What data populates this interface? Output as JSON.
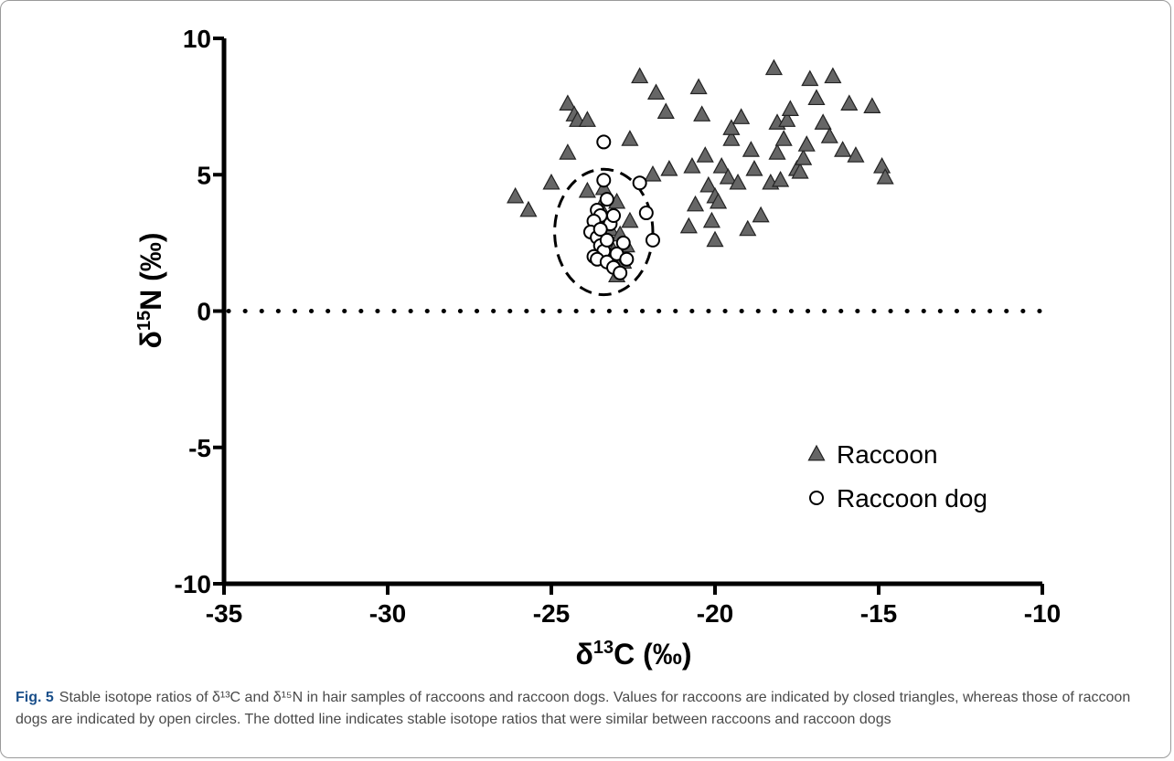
{
  "chart_data": {
    "type": "scatter",
    "xlabel": {
      "pre": "δ",
      "sup": "13",
      "post": "C (‰)"
    },
    "ylabel": {
      "pre": "δ",
      "sup": "15",
      "post": "N (‰)"
    },
    "xlim": [
      -35,
      -10
    ],
    "ylim": [
      -10,
      10
    ],
    "xticks": [
      -35,
      -30,
      -25,
      -20,
      -15,
      -10
    ],
    "yticks": [
      -10,
      -5,
      0,
      5,
      10
    ],
    "x_tick_labels": [
      "-35",
      "-30",
      "-25",
      "-20",
      "-15",
      "-10"
    ],
    "y_tick_labels": [
      "-10",
      "-5",
      "0",
      "5",
      "10"
    ],
    "grid": false,
    "legend_position": "lower-right",
    "reference_line": {
      "style": "dotted",
      "y": 0
    },
    "cluster_ellipse": {
      "style": "dashed",
      "center": [
        -23.4,
        2.9
      ],
      "radius_x": 1.5,
      "radius_y": 2.3
    },
    "series": [
      {
        "name": "Raccoon",
        "marker": "filled-triangle",
        "color": "#666666",
        "points": [
          [
            -26.1,
            4.2
          ],
          [
            -25.7,
            3.7
          ],
          [
            -25.0,
            4.7
          ],
          [
            -24.5,
            5.8
          ],
          [
            -24.5,
            7.6
          ],
          [
            -24.3,
            7.2
          ],
          [
            -24.2,
            7.0
          ],
          [
            -23.9,
            7.0
          ],
          [
            -23.9,
            4.4
          ],
          [
            -23.7,
            3.2
          ],
          [
            -23.5,
            3.8
          ],
          [
            -23.4,
            4.5
          ],
          [
            -23.3,
            2.6
          ],
          [
            -23.2,
            3.0
          ],
          [
            -23.1,
            2.2
          ],
          [
            -23.0,
            4.0
          ],
          [
            -22.9,
            2.8
          ],
          [
            -22.8,
            1.8
          ],
          [
            -22.7,
            2.4
          ],
          [
            -23.0,
            1.3
          ],
          [
            -23.2,
            2.0
          ],
          [
            -22.6,
            3.3
          ],
          [
            -22.6,
            6.3
          ],
          [
            -22.3,
            8.6
          ],
          [
            -21.9,
            5.0
          ],
          [
            -21.8,
            8.0
          ],
          [
            -21.5,
            7.3
          ],
          [
            -21.4,
            5.2
          ],
          [
            -20.8,
            3.1
          ],
          [
            -20.7,
            5.3
          ],
          [
            -20.6,
            3.9
          ],
          [
            -20.5,
            8.2
          ],
          [
            -20.4,
            7.2
          ],
          [
            -20.3,
            5.7
          ],
          [
            -20.2,
            4.6
          ],
          [
            -20.1,
            3.3
          ],
          [
            -20.0,
            2.6
          ],
          [
            -20.0,
            4.2
          ],
          [
            -19.9,
            4.0
          ],
          [
            -19.8,
            5.3
          ],
          [
            -19.6,
            4.9
          ],
          [
            -19.5,
            6.3
          ],
          [
            -19.5,
            6.7
          ],
          [
            -19.3,
            4.7
          ],
          [
            -19.2,
            7.1
          ],
          [
            -19.0,
            3.0
          ],
          [
            -18.9,
            5.9
          ],
          [
            -18.8,
            5.2
          ],
          [
            -18.6,
            3.5
          ],
          [
            -18.3,
            4.7
          ],
          [
            -18.2,
            8.9
          ],
          [
            -18.1,
            6.9
          ],
          [
            -18.1,
            5.8
          ],
          [
            -18.0,
            4.8
          ],
          [
            -17.9,
            6.3
          ],
          [
            -17.8,
            7.0
          ],
          [
            -17.7,
            7.4
          ],
          [
            -17.5,
            5.2
          ],
          [
            -17.4,
            5.1
          ],
          [
            -17.3,
            5.6
          ],
          [
            -17.2,
            6.1
          ],
          [
            -17.1,
            8.5
          ],
          [
            -16.9,
            7.8
          ],
          [
            -16.7,
            6.9
          ],
          [
            -16.5,
            6.4
          ],
          [
            -16.4,
            8.6
          ],
          [
            -16.1,
            5.9
          ],
          [
            -15.9,
            7.6
          ],
          [
            -15.7,
            5.7
          ],
          [
            -15.2,
            7.5
          ],
          [
            -14.9,
            5.3
          ],
          [
            -14.8,
            4.9
          ]
        ]
      },
      {
        "name": "Raccoon dog",
        "marker": "open-circle",
        "color": "#ffffff",
        "points": [
          [
            -23.4,
            6.2
          ],
          [
            -23.4,
            4.8
          ],
          [
            -23.3,
            4.1
          ],
          [
            -23.6,
            3.7
          ],
          [
            -23.5,
            3.5
          ],
          [
            -23.7,
            3.3
          ],
          [
            -23.8,
            2.9
          ],
          [
            -23.6,
            2.7
          ],
          [
            -23.5,
            2.4
          ],
          [
            -23.4,
            2.2
          ],
          [
            -23.7,
            2.0
          ],
          [
            -23.6,
            1.9
          ],
          [
            -23.3,
            1.8
          ],
          [
            -23.1,
            1.6
          ],
          [
            -23.0,
            2.1
          ],
          [
            -22.8,
            2.5
          ],
          [
            -22.7,
            1.9
          ],
          [
            -22.9,
            1.4
          ],
          [
            -23.2,
            3.2
          ],
          [
            -23.1,
            3.5
          ],
          [
            -22.3,
            4.7
          ],
          [
            -22.1,
            3.6
          ],
          [
            -21.9,
            2.6
          ],
          [
            -23.5,
            3.0
          ],
          [
            -23.3,
            2.6
          ]
        ]
      }
    ]
  },
  "caption": {
    "label": "Fig. 5",
    "text": "Stable isotope ratios of δ¹³C and δ¹⁵N in hair samples of raccoons and raccoon dogs. Values for raccoons are indicated by closed triangles, whereas those of raccoon dogs are indicated by open circles. The dotted line indicates stable isotope ratios that were similar between raccoons and raccoon dogs"
  }
}
